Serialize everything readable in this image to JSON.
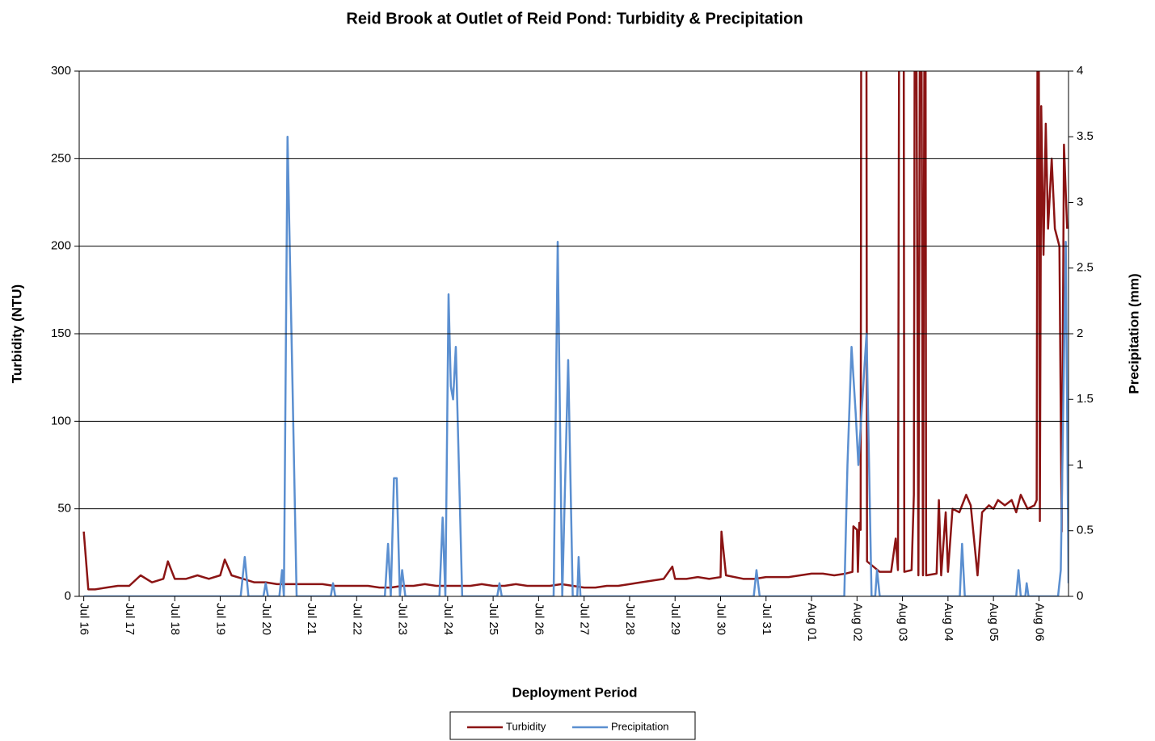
{
  "chart_data": {
    "type": "line",
    "title": "Reid Brook at Outlet of Reid Pond: Turbidity & Precipitation",
    "x_label": "Deployment Period",
    "y_label": "Turbidity (NTU)",
    "y2_label": "Precipitation (mm)",
    "xlim": [
      -0.1,
      21.65
    ],
    "xticks": [
      {
        "value": 0,
        "label": "Jul 16"
      },
      {
        "value": 1,
        "label": "Jul 17"
      },
      {
        "value": 2,
        "label": "Jul 18"
      },
      {
        "value": 3,
        "label": "Jul 19"
      },
      {
        "value": 4,
        "label": "Jul 20"
      },
      {
        "value": 5,
        "label": "Jul 21"
      },
      {
        "value": 6,
        "label": "Jul 22"
      },
      {
        "value": 7,
        "label": "Jul 23"
      },
      {
        "value": 8,
        "label": "Jul 24"
      },
      {
        "value": 9,
        "label": "Jul 25"
      },
      {
        "value": 10,
        "label": "Jul 26"
      },
      {
        "value": 11,
        "label": "Jul 27"
      },
      {
        "value": 12,
        "label": "Jul 28"
      },
      {
        "value": 13,
        "label": "Jul 29"
      },
      {
        "value": 14,
        "label": "Jul 30"
      },
      {
        "value": 15,
        "label": "Jul 31"
      },
      {
        "value": 16,
        "label": "Aug 01"
      },
      {
        "value": 17,
        "label": "Aug 02"
      },
      {
        "value": 18,
        "label": "Aug 03"
      },
      {
        "value": 19,
        "label": "Aug 04"
      },
      {
        "value": 20,
        "label": "Aug 05"
      },
      {
        "value": 21,
        "label": "Aug 06"
      }
    ],
    "ylim": [
      0,
      300
    ],
    "yticks": [
      0,
      50,
      100,
      150,
      200,
      250,
      300
    ],
    "y2lim": [
      0,
      4
    ],
    "y2ticks": [
      0,
      0.5,
      1,
      1.5,
      2,
      2.5,
      3,
      3.5,
      4
    ],
    "grid": true,
    "legend": "bottom",
    "series": [
      {
        "name": "Turbidity",
        "color": "#8b1414",
        "x": [
          0,
          0.1,
          0.25,
          0.5,
          0.75,
          1,
          1.25,
          1.5,
          1.75,
          1.85,
          2,
          2.25,
          2.5,
          2.75,
          3,
          3.1,
          3.25,
          3.5,
          3.75,
          4,
          4.25,
          4.5,
          4.75,
          5,
          5.25,
          5.5,
          5.75,
          6,
          6.25,
          6.5,
          6.75,
          7,
          7.25,
          7.5,
          7.75,
          8,
          8.25,
          8.5,
          8.75,
          9,
          9.25,
          9.5,
          9.75,
          10,
          10.25,
          10.5,
          10.75,
          11,
          11.25,
          11.5,
          11.75,
          12,
          12.25,
          12.5,
          12.75,
          12.94,
          13,
          13.25,
          13.5,
          13.75,
          14,
          14.02,
          14.12,
          14.5,
          14.75,
          15,
          15.25,
          15.5,
          15.75,
          16,
          16.25,
          16.5,
          16.75,
          16.9,
          16.92,
          17,
          17.02,
          17.05,
          17.08,
          17.1,
          17.2,
          17.22,
          17.5,
          17.75,
          17.85,
          17.9,
          17.94,
          18.02,
          18.04,
          18.2,
          18.25,
          18.28,
          18.35,
          18.4,
          18.45,
          18.5,
          18.52,
          18.75,
          18.8,
          18.85,
          18.95,
          19,
          19.1,
          19.25,
          19.4,
          19.5,
          19.65,
          19.75,
          19.9,
          20,
          20.1,
          20.25,
          20.4,
          20.5,
          20.6,
          20.75,
          20.9,
          20.95,
          20.98,
          21.02,
          21.05,
          21.1,
          21.15,
          21.2,
          21.28,
          21.35,
          21.45,
          21.5,
          21.55,
          21.62
        ],
        "values": [
          37,
          4,
          4,
          5,
          6,
          6,
          12,
          8,
          10,
          20,
          10,
          10,
          12,
          10,
          12,
          21,
          12,
          10,
          8,
          8,
          7,
          7,
          7,
          7,
          7,
          6,
          6,
          6,
          6,
          5,
          5,
          6,
          6,
          7,
          6,
          6,
          6,
          6,
          7,
          6,
          6,
          7,
          6,
          6,
          6,
          7,
          6,
          5,
          5,
          6,
          6,
          7,
          8,
          9,
          10,
          17,
          10,
          10,
          11,
          10,
          11,
          37,
          12,
          10,
          10,
          11,
          11,
          11,
          12,
          13,
          13,
          12,
          13,
          14,
          40,
          38,
          14,
          42,
          38,
          500,
          500,
          20,
          14,
          14,
          33,
          15,
          500,
          500,
          14,
          15,
          58,
          500,
          12,
          500,
          12,
          500,
          12,
          13,
          55,
          12,
          48,
          14,
          50,
          48,
          58,
          52,
          12,
          48,
          52,
          50,
          55,
          52,
          55,
          48,
          58,
          50,
          52,
          55,
          500,
          43,
          280,
          195,
          270,
          210,
          250,
          210,
          200,
          37,
          258,
          210
        ]
      },
      {
        "name": "Precipitation",
        "color": "#5b8fd0",
        "axis": "y2",
        "x": [
          0,
          3.45,
          3.54,
          3.62,
          3.95,
          4.0,
          4.05,
          4.3,
          4.36,
          4.4,
          4.48,
          4.59,
          4.68,
          5.43,
          5.48,
          5.53,
          6.62,
          6.69,
          6.75,
          6.82,
          6.88,
          6.95,
          7.0,
          7.07,
          7.82,
          7.89,
          7.95,
          8.02,
          8.07,
          8.12,
          8.18,
          8.32,
          9.09,
          9.14,
          9.19,
          10.33,
          10.42,
          10.52,
          10.65,
          10.75,
          10.85,
          10.88,
          10.92,
          14.73,
          14.79,
          14.86,
          16.72,
          16.79,
          16.88,
          16.97,
          17.03,
          17.1,
          17.21,
          17.32,
          17.4,
          17.44,
          17.5,
          19.26,
          19.31,
          19.37,
          20.5,
          20.55,
          20.6,
          20.7,
          20.73,
          20.77,
          21.42,
          21.48,
          21.59,
          21.65
        ],
        "values": [
          0,
          0,
          0.3,
          0,
          0,
          0.1,
          0,
          0,
          0.2,
          0,
          3.5,
          1.6,
          0,
          0,
          0.1,
          0,
          0,
          0.4,
          0,
          0.9,
          0.9,
          0,
          0.2,
          0,
          0,
          0.6,
          0,
          2.3,
          1.6,
          1.5,
          1.9,
          0,
          0,
          0.1,
          0,
          0,
          2.7,
          0,
          1.8,
          0,
          0,
          0.3,
          0,
          0,
          0.2,
          0,
          0,
          1.0,
          1.9,
          1.4,
          1.0,
          1.4,
          2.0,
          0,
          0,
          0.2,
          0,
          0,
          0.4,
          0,
          0,
          0.2,
          0,
          0,
          0.1,
          0,
          0,
          0.2,
          2.7,
          0.1
        ]
      }
    ]
  }
}
